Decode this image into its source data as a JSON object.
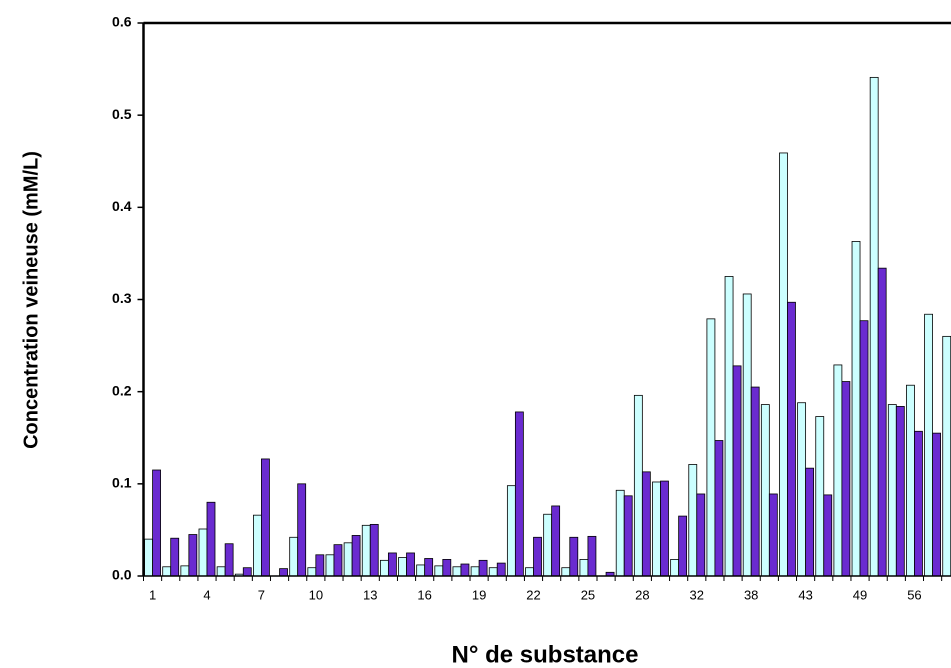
{
  "chart_data": {
    "type": "bar",
    "xlabel": "N° de substance",
    "ylabel": "Concentration veineuse (mM/L)",
    "categories": [
      "1",
      null,
      null,
      "4",
      null,
      null,
      "7",
      null,
      null,
      "10",
      null,
      null,
      "13",
      null,
      null,
      "16",
      null,
      null,
      "19",
      null,
      null,
      "22",
      null,
      null,
      "25",
      null,
      null,
      "28",
      null,
      null,
      "32",
      null,
      null,
      "38",
      null,
      null,
      "43",
      null,
      null,
      "49",
      null,
      null,
      "56",
      null,
      null
    ],
    "series": [
      {
        "color": "#ccffff",
        "values": [
          0.04,
          0.01,
          0.011,
          0.051,
          0.01,
          0.002,
          0.066,
          0,
          0.042,
          0.009,
          0.023,
          0.036,
          0.055,
          0.017,
          0.02,
          0.012,
          0.011,
          0.01,
          0.01,
          0.009,
          0.098,
          0.009,
          0.067,
          0.009,
          0.018,
          0,
          0.093,
          0.196,
          0.102,
          0.018,
          0.121,
          0.279,
          0.325,
          0.306,
          0.186,
          0.459,
          0.188,
          0.173,
          0.229,
          0.363,
          0.541,
          0.186,
          0.207,
          0.284,
          0.26
        ]
      },
      {
        "color": "#6a2bd0",
        "values": [
          0.115,
          0.041,
          0.045,
          0.08,
          0.035,
          0.009,
          0.127,
          0.008,
          0.1,
          0.023,
          0.034,
          0.044,
          0.056,
          0.025,
          0.025,
          0.019,
          0.018,
          0.013,
          0.017,
          0.014,
          0.178,
          0.042,
          0.076,
          0.042,
          0.043,
          0.004,
          0.087,
          0.113,
          0.103,
          0.065,
          0.089,
          0.147,
          0.228,
          0.205,
          0.089,
          0.297,
          0.117,
          0.088,
          0.211,
          0.277,
          0.334,
          0.184,
          0.157,
          0.155,
          null
        ]
      }
    ],
    "ylim": [
      0,
      0.6
    ],
    "yticks": [
      {
        "value": 0,
        "label": "0.0"
      },
      0.1,
      0.2,
      0.3,
      0.4,
      0.5,
      0.6
    ]
  }
}
